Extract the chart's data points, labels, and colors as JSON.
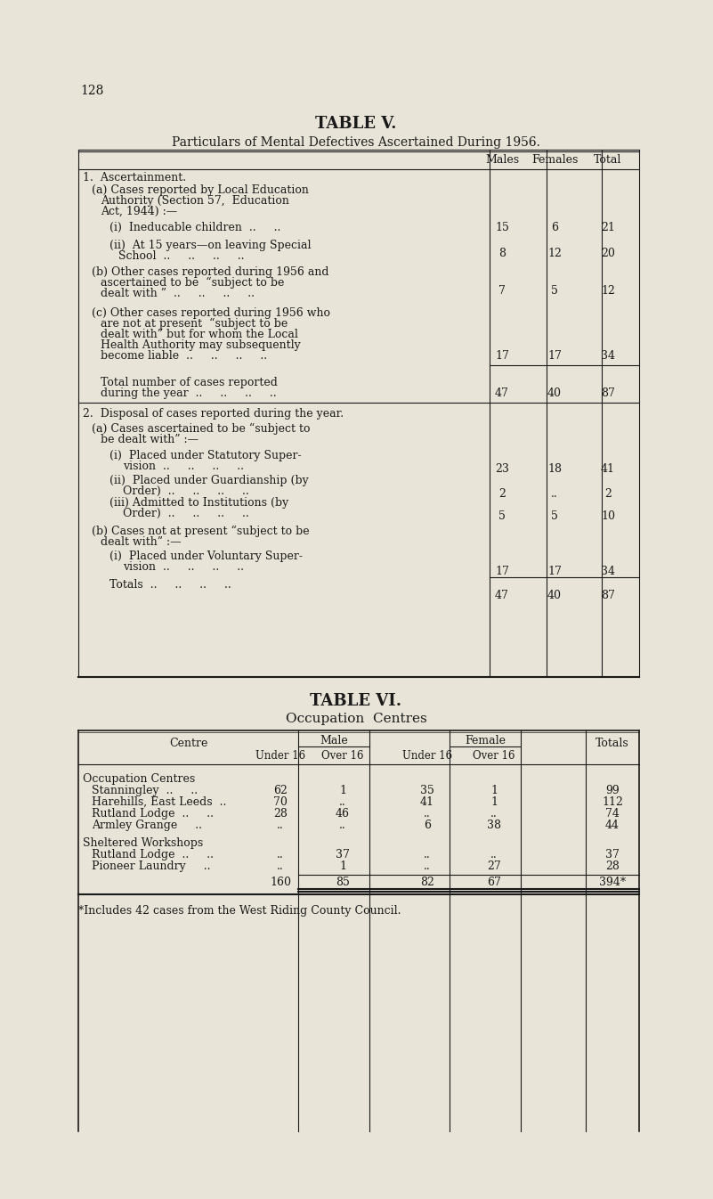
{
  "page_number": "128",
  "bg_color": "#e8e4d8",
  "text_color": "#1a1a1a",
  "table5": {
    "title": "TABLE V.",
    "subtitle": "Particulars of Mental Defectives Ascertained During 1956.",
    "col_headers": [
      "Males",
      "Females",
      "Total"
    ],
    "rows": [
      {
        "label": "1.  Ascertainment.",
        "indent": 0,
        "vals": [
          "",
          "",
          ""
        ],
        "bold": false
      },
      {
        "label": "(a) Cases reported by Local Education\n     Authority (Section 57,  Education\n     Act, 1944) :—",
        "indent": 1,
        "vals": [
          "",
          "",
          ""
        ],
        "bold": false
      },
      {
        "label": "(i)  Ineducable children",
        "indent": 2,
        "vals": [
          "15",
          "6",
          "21"
        ],
        "bold": false
      },
      {
        "label": "(ii)  At 15 years—on leaving Special\n       School",
        "indent": 2,
        "vals": [
          "8",
          "12",
          "20"
        ],
        "bold": false
      },
      {
        "label": "(b) Other cases reported during 1956 and\n     ascertained to be  “subject to be\n     dealt with”",
        "indent": 1,
        "vals": [
          "7",
          "5",
          "12"
        ],
        "bold": false
      },
      {
        "label": "(c) Other cases reported during 1956 who\n     are not at present  “subject to be\n     dealt with” but for whom the Local\n     Health Authority may subsequently\n     become liable",
        "indent": 1,
        "vals": [
          "17",
          "17",
          "34"
        ],
        "bold": false
      },
      {
        "label": "Total number of cases reported\nduring the year",
        "indent": 1,
        "vals": [
          "47",
          "40",
          "87"
        ],
        "bold": false
      },
      {
        "label": "2.  Disposal of cases reported during the year.",
        "indent": 0,
        "vals": [
          "",
          "",
          ""
        ],
        "bold": false
      },
      {
        "label": "(a) Cases ascertained to be “subject to\n     be dealt with” :—",
        "indent": 1,
        "vals": [
          "",
          "",
          ""
        ],
        "bold": false
      },
      {
        "label": "     (i)  Placed under Statutory Super-\n            vision",
        "indent": 2,
        "vals": [
          "23",
          "18",
          "41"
        ],
        "bold": false
      },
      {
        "label": "     (ii)  Placed under Guardianship (by\n             Order)",
        "indent": 2,
        "vals": [
          "2",
          "..",
          "2"
        ],
        "bold": false
      },
      {
        "label": "     (iii) Admitted to Institutions (by\n             Order)",
        "indent": 2,
        "vals": [
          "5",
          "5",
          "10"
        ],
        "bold": false
      },
      {
        "label": "(b) Cases not at present “subject to be\n     dealt with” :—",
        "indent": 1,
        "vals": [
          "",
          "",
          ""
        ],
        "bold": false
      },
      {
        "label": "     (i)  Placed under Voluntary Super-\n            vision",
        "indent": 2,
        "vals": [
          "17",
          "17",
          "34"
        ],
        "bold": false
      },
      {
        "label": "Totals",
        "indent": 1,
        "vals": [
          "47",
          "40",
          "87"
        ],
        "bold": false
      }
    ]
  },
  "table6": {
    "title": "TABLE VI.",
    "subtitle": "Occupation  Centres",
    "col_group1": "Male",
    "col_group2": "Female",
    "col_sub": [
      "Under 16",
      "Over 16",
      "Under 16",
      "Over 16"
    ],
    "col_totals": "Totals",
    "centre_label": "Centre",
    "rows": [
      {
        "label": "Occupation Centres",
        "indent": 0,
        "vals": [
          "",
          "",
          "",
          "",
          ""
        ],
        "section": true
      },
      {
        "label": "Stanningley",
        "indent": 1,
        "vals": [
          "62",
          "1",
          "35",
          "1",
          "99"
        ],
        "section": false
      },
      {
        "label": "Harehills, East Leeds ..",
        "indent": 1,
        "vals": [
          "70",
          "..",
          "41",
          "1",
          "112"
        ],
        "section": false
      },
      {
        "label": "Rutland Lodge ..",
        "indent": 1,
        "vals": [
          "28",
          "46",
          "..",
          "..",
          "74"
        ],
        "section": false
      },
      {
        "label": "Armley Grange",
        "indent": 1,
        "vals": [
          "..",
          "..",
          "6",
          "38",
          "44"
        ],
        "section": false
      },
      {
        "label": "",
        "indent": 0,
        "vals": [
          "",
          "",
          "",
          "",
          ""
        ],
        "section": false
      },
      {
        "label": "Sheltered Workshops",
        "indent": 0,
        "vals": [
          "",
          "",
          "",
          "",
          ""
        ],
        "section": true
      },
      {
        "label": "Rutland Lodge ..",
        "indent": 1,
        "vals": [
          "..",
          "37",
          "..",
          "..",
          "37"
        ],
        "section": false
      },
      {
        "label": "Pioneer Laundry",
        "indent": 1,
        "vals": [
          "..",
          "1",
          "..",
          "27",
          "28"
        ],
        "section": false
      },
      {
        "label": "",
        "indent": 0,
        "vals": [
          "160",
          "85",
          "82",
          "67",
          "394*"
        ],
        "section": false,
        "totals_row": true
      }
    ],
    "footnote": "*Includes 42 cases from the West Riding County Council."
  }
}
